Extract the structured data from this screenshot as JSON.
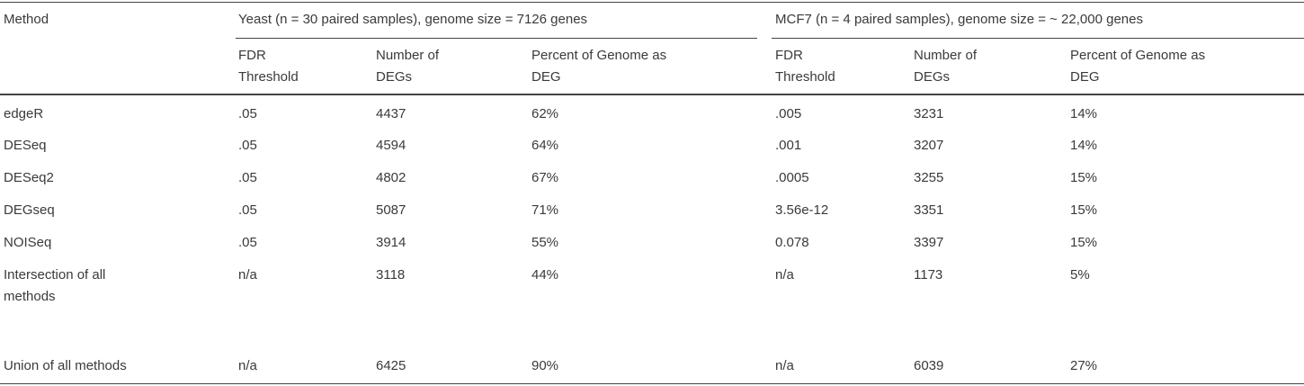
{
  "table": {
    "header": {
      "method": "Method",
      "groups": [
        "Yeast (n = 30 paired samples), genome size = 7126 genes",
        "MCF7 (n = 4 paired samples), genome size = ~ 22,000 genes"
      ],
      "subcolumns": [
        [
          "FDR",
          "Threshold"
        ],
        [
          "Number of",
          "DEGs"
        ],
        [
          "Percent of Genome as",
          "DEG"
        ],
        [
          "FDR",
          "Threshold"
        ],
        [
          "Number of",
          "DEGs"
        ],
        [
          "Percent of Genome as",
          "DEG"
        ]
      ]
    },
    "rows": [
      [
        "edgeR",
        ".05",
        "4437",
        "62%",
        ".005",
        "3231",
        "14%"
      ],
      [
        "DESeq",
        ".05",
        "4594",
        "64%",
        ".001",
        "3207",
        "14%"
      ],
      [
        "DESeq2",
        ".05",
        "4802",
        "67%",
        ".0005",
        "3255",
        "15%"
      ],
      [
        "DEGseq",
        ".05",
        "5087",
        "71%",
        "3.56e-12",
        "3351",
        "15%"
      ],
      [
        "NOISeq",
        ".05",
        "3914",
        "55%",
        "0.078",
        "3397",
        "15%"
      ],
      [
        "Intersection of all methods",
        "n/a",
        "3118",
        "44%",
        "n/a",
        "1173",
        "5%"
      ],
      [
        "Union of all methods",
        "n/a",
        "6425",
        "90%",
        "n/a",
        "6039",
        "27%"
      ]
    ]
  }
}
